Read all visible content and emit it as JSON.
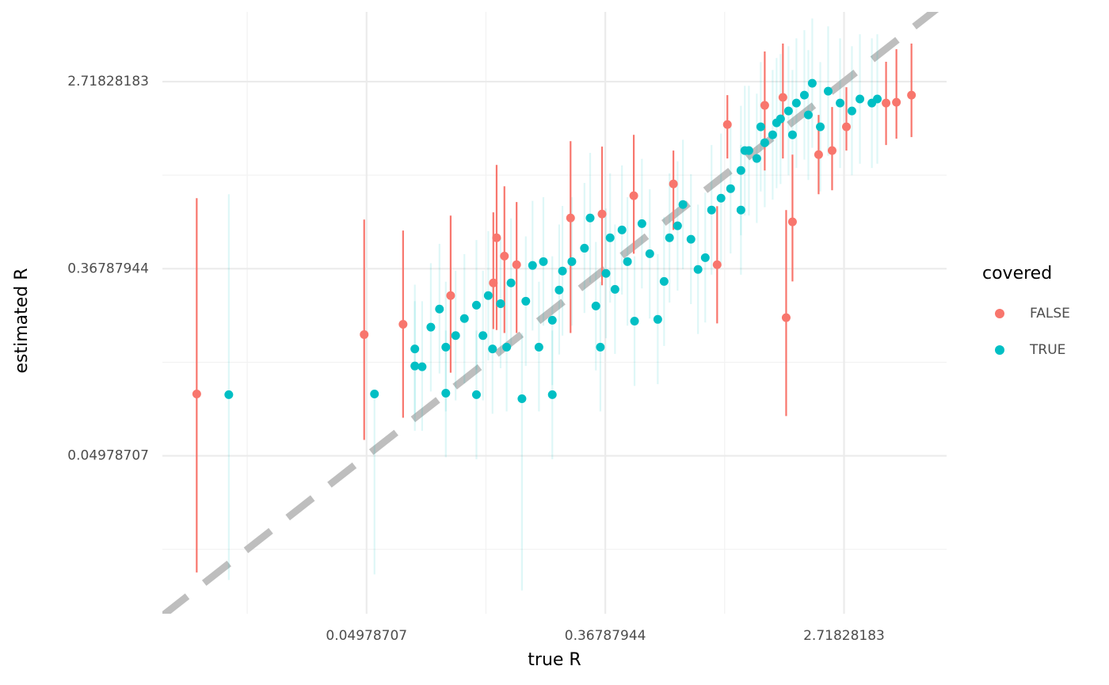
{
  "chart_data": {
    "type": "scatter",
    "x_label": "true R",
    "y_label": "estimated R",
    "legend_title": "covered",
    "legend_position": "right",
    "xscale": "log",
    "yscale": "log",
    "grid": true,
    "identity_line": true,
    "xlim": [
      0.009,
      6.42
    ],
    "ylim": [
      0.0092,
      5.73
    ],
    "xticks": [
      0.04978707,
      0.36787944,
      2.71828183
    ],
    "yticks": [
      0.04978707,
      0.36787944,
      2.71828183
    ],
    "minor_xticks": [
      0.01831564,
      0.13533528,
      1
    ],
    "minor_yticks": [
      0.01831564,
      0.13533528,
      1
    ],
    "series": [
      {
        "name": "FALSE",
        "color": "#F8766D",
        "x": [
          0.012,
          0.0488,
          0.0676,
          0.1007,
          0.148,
          0.158,
          0.275,
          0.358,
          0.467,
          0.651,
          0.939,
          1.023,
          1.399,
          1.629,
          1.765,
          1.674,
          2.197,
          2.46,
          2.773,
          3.866,
          4.216,
          4.783,
          0.175,
          0.144
        ],
        "values": [
          0.0964,
          0.182,
          0.203,
          0.276,
          0.512,
          0.421,
          0.633,
          0.66,
          0.803,
          0.911,
          0.384,
          1.719,
          2.109,
          2.296,
          0.607,
          0.218,
          1.246,
          1.301,
          1.677,
          2.162,
          2.181,
          2.354,
          0.384,
          0.316
        ],
        "lower": [
          0.0143,
          0.059,
          0.0748,
          0.121,
          0.191,
          0.185,
          0.185,
          0.308,
          0.432,
          0.557,
          0.205,
          1.195,
          1.052,
          1.195,
          0.321,
          0.0761,
          0.816,
          0.851,
          1.301,
          1.38,
          1.477,
          1.502,
          0.185,
          0.193
        ],
        "upper": [
          0.782,
          0.622,
          0.553,
          0.649,
          1.116,
          0.888,
          1.439,
          1.357,
          1.54,
          1.301,
          0.718,
          2.354,
          3.751,
          4.084,
          1.246,
          0.689,
          1.904,
          2.073,
          2.562,
          3.36,
          3.846,
          4.084,
          0.75,
          0.672
        ]
      },
      {
        "name": "TRUE",
        "color": "#00BFC4",
        "x": [
          0.0157,
          0.0532,
          0.0746,
          0.0746,
          0.0793,
          0.0853,
          0.0917,
          0.0967,
          0.0967,
          0.105,
          0.113,
          0.125,
          0.125,
          0.132,
          0.138,
          0.143,
          0.153,
          0.161,
          0.167,
          0.183,
          0.189,
          0.2,
          0.211,
          0.219,
          0.236,
          0.236,
          0.25,
          0.257,
          0.278,
          0.309,
          0.324,
          0.34,
          0.353,
          0.37,
          0.383,
          0.399,
          0.423,
          0.443,
          0.47,
          0.5,
          0.534,
          0.571,
          0.602,
          0.63,
          0.674,
          0.705,
          0.754,
          0.8,
          0.85,
          0.896,
          0.97,
          1.051,
          1.146,
          1.146,
          1.225,
          1.309,
          1.399,
          1.495,
          1.597,
          1.707,
          1.824,
          1.95,
          2.083,
          2.228,
          2.38,
          2.63,
          2.904,
          3.105,
          3.432,
          3.593,
          1.184,
          1.353,
          1.545,
          1.765,
          2.016
        ],
        "values": [
          0.0957,
          0.0964,
          0.156,
          0.13,
          0.129,
          0.197,
          0.239,
          0.159,
          0.0972,
          0.18,
          0.216,
          0.249,
          0.0957,
          0.18,
          0.276,
          0.156,
          0.253,
          0.159,
          0.316,
          0.0916,
          0.26,
          0.381,
          0.159,
          0.397,
          0.0957,
          0.212,
          0.293,
          0.359,
          0.397,
          0.458,
          0.633,
          0.247,
          0.159,
          0.35,
          0.512,
          0.295,
          0.557,
          0.397,
          0.21,
          0.596,
          0.432,
          0.214,
          0.321,
          0.512,
          0.582,
          0.731,
          0.504,
          0.365,
          0.414,
          0.689,
          0.782,
          0.866,
          0.689,
          1.052,
          1.301,
          1.195,
          1.415,
          1.54,
          1.826,
          1.986,
          2.162,
          2.354,
          2.672,
          1.677,
          2.455,
          2.162,
          1.986,
          2.257,
          2.162,
          2.257,
          1.301,
          1.677,
          1.749,
          1.54,
          1.904
        ],
        "lower": [
          0.0132,
          0.014,
          0.078,
          0.065,
          0.065,
          0.099,
          0.12,
          0.08,
          0.049,
          0.09,
          0.108,
          0.125,
          0.048,
          0.09,
          0.138,
          0.078,
          0.127,
          0.08,
          0.158,
          0.0118,
          0.13,
          0.19,
          0.08,
          0.2,
          0.048,
          0.106,
          0.147,
          0.18,
          0.2,
          0.229,
          0.317,
          0.124,
          0.08,
          0.175,
          0.256,
          0.148,
          0.279,
          0.2,
          0.105,
          0.298,
          0.216,
          0.107,
          0.161,
          0.256,
          0.291,
          0.366,
          0.252,
          0.183,
          0.207,
          0.345,
          0.391,
          0.433,
          0.345,
          0.526,
          0.65,
          0.6,
          0.71,
          0.77,
          0.91,
          1,
          1.08,
          1.18,
          1.34,
          0.84,
          1.23,
          1.08,
          1,
          1.13,
          1.08,
          1.13,
          0.65,
          0.84,
          0.87,
          0.77,
          0.95
        ],
        "upper": [
          0.816,
          0.1,
          0.31,
          0.26,
          0.26,
          0.39,
          0.48,
          0.32,
          0.19,
          0.36,
          0.43,
          0.5,
          0.19,
          0.36,
          0.55,
          0.31,
          0.51,
          0.32,
          0.63,
          0.185,
          0.52,
          0.76,
          0.32,
          0.79,
          0.19,
          0.42,
          0.59,
          0.72,
          0.79,
          0.92,
          1.27,
          0.49,
          0.32,
          0.7,
          1.02,
          0.59,
          1.11,
          0.79,
          0.42,
          1.19,
          0.86,
          0.43,
          0.64,
          1.02,
          1.16,
          1.46,
          1.01,
          0.73,
          0.83,
          1.38,
          1.56,
          1.73,
          1.38,
          2.1,
          2.6,
          2.39,
          2.83,
          3.08,
          3.65,
          3.97,
          4.32,
          4.71,
          5.34,
          3.35,
          4.91,
          4.32,
          3.97,
          4.51,
          4.32,
          4.51,
          2.6,
          3.35,
          3.5,
          3.08,
          3.81
        ]
      }
    ]
  }
}
